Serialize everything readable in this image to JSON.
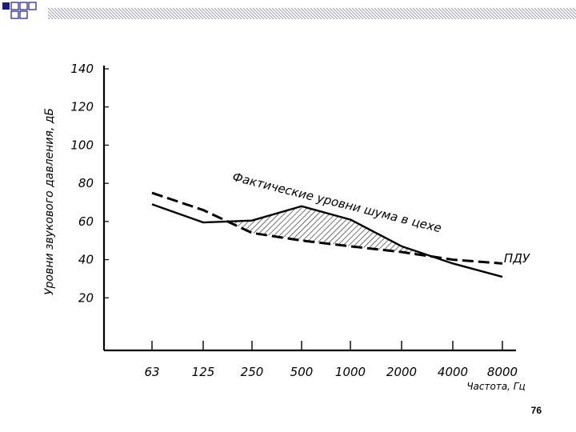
{
  "slide": {
    "page_number": "76",
    "accent_color": "#1a1a8c"
  },
  "chart_data": {
    "type": "line",
    "title": "",
    "ylabel": "Уровни звукового давления, дБ",
    "xlabel": "Частота, Гц",
    "categories": [
      "63",
      "125",
      "250",
      "500",
      "1000",
      "2000",
      "4000",
      "8000"
    ],
    "yticks": [
      "140",
      "120",
      "100",
      "80",
      "60",
      "40",
      "20"
    ],
    "ylim": [
      0,
      140
    ],
    "grid": false,
    "series": [
      {
        "name": "Фактические уровни шума в цехе",
        "style": "solid",
        "points": [
          [
            0,
            69
          ],
          [
            1,
            59.5
          ],
          [
            2,
            60.5
          ],
          [
            3,
            68
          ],
          [
            4,
            61
          ],
          [
            5,
            47
          ],
          [
            6,
            38
          ],
          [
            7,
            31
          ]
        ]
      },
      {
        "name": "ПДУ",
        "style": "dashed",
        "points": [
          [
            0,
            75
          ],
          [
            1,
            66
          ],
          [
            2,
            54
          ],
          [
            3,
            50
          ],
          [
            4,
            47
          ],
          [
            5,
            44
          ],
          [
            6,
            40
          ],
          [
            7,
            38
          ]
        ]
      }
    ],
    "shaded_region": "between series where actual noise exceeds ПДУ"
  }
}
